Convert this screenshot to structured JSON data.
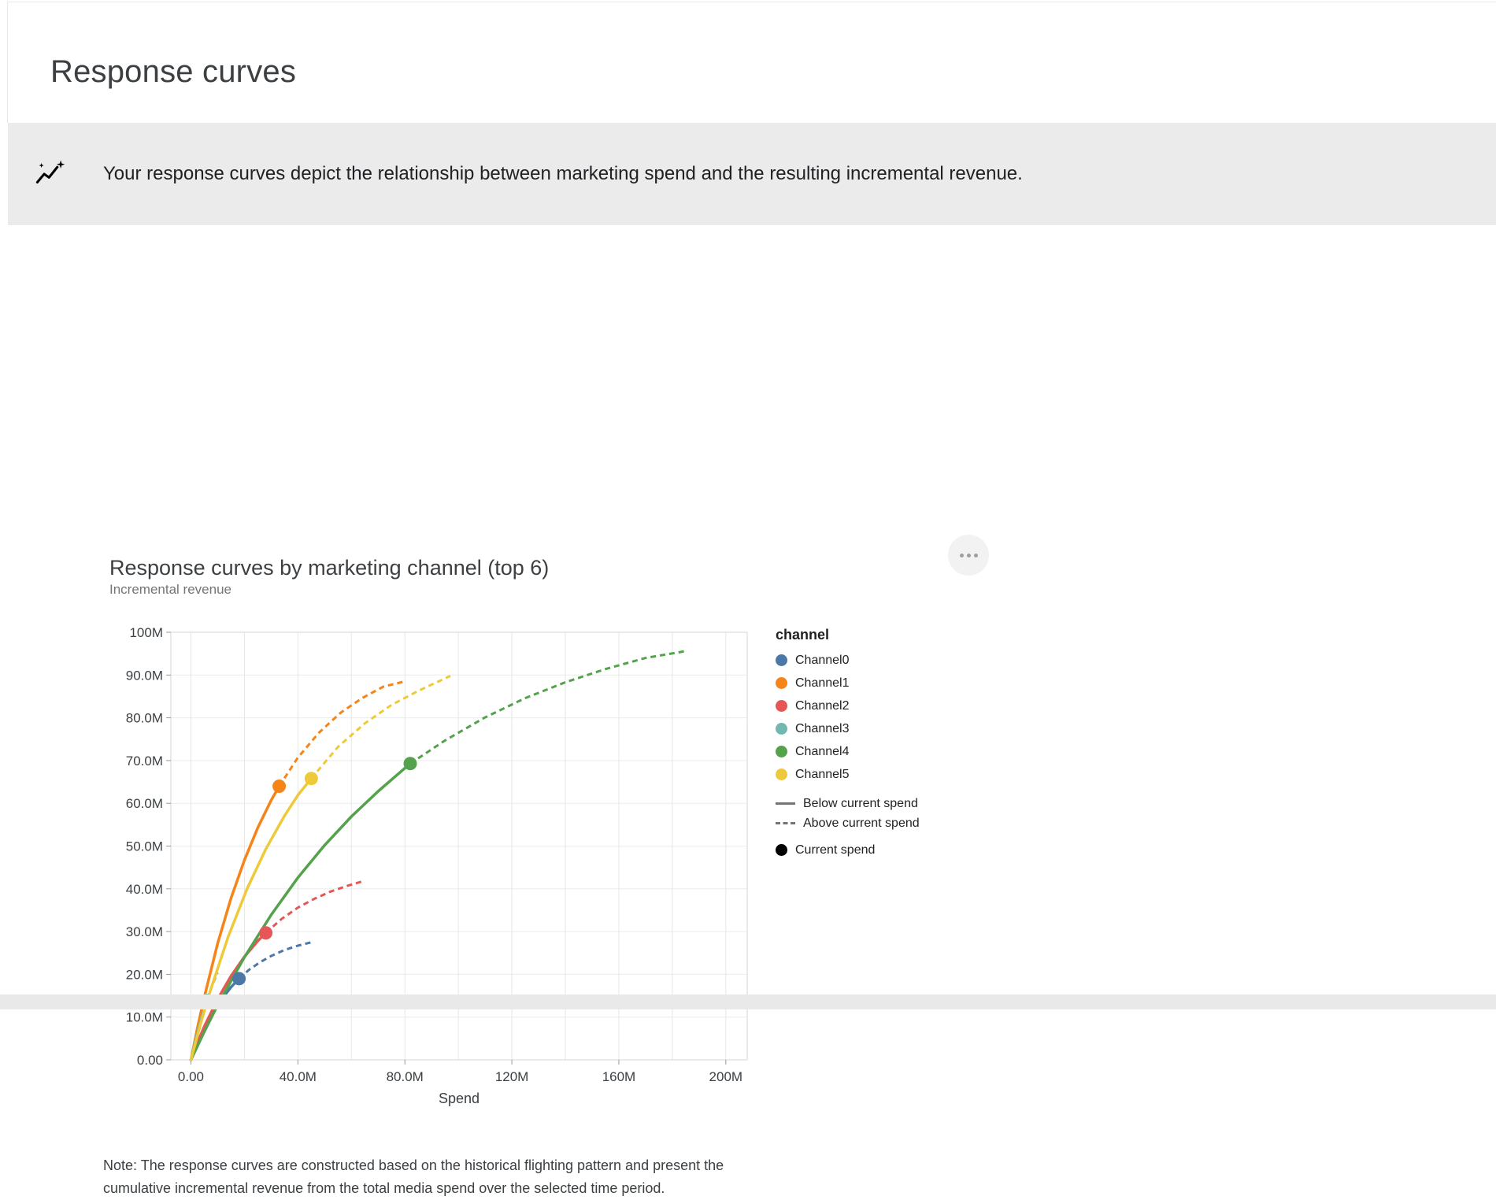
{
  "page": {
    "title": "Response curves",
    "note": "Note: The response curves are constructed based on the historical flighting pattern and present the cumulative incremental revenue from the total media spend over the selected time period."
  },
  "banner": {
    "icon": "insights-icon",
    "text": "Your response curves depict the relationship between marketing spend and the resulting incremental revenue."
  },
  "icons": {
    "chart_menu": "more-options-icon"
  },
  "legend": {
    "title": "channel",
    "style_items": [
      {
        "label": "Below current spend",
        "style": "solid"
      },
      {
        "label": "Above current spend",
        "style": "dashed"
      },
      {
        "label": "Current spend",
        "style": "dot"
      }
    ]
  },
  "chart_data": {
    "type": "line",
    "title": "Response curves by marketing channel (top 6)",
    "xlabel": "Spend",
    "ylabel": "Incremental revenue",
    "units": "M = millions",
    "x_domain_millions": [
      -7.5,
      208
    ],
    "y_domain_millions": [
      0,
      100
    ],
    "x_grid_step": 20,
    "y_grid_step": 10,
    "x_ticks": [
      {
        "v": 0,
        "label": "0.00"
      },
      {
        "v": 40,
        "label": "40.0M"
      },
      {
        "v": 80,
        "label": "80.0M"
      },
      {
        "v": 120,
        "label": "120M"
      },
      {
        "v": 160,
        "label": "160M"
      },
      {
        "v": 200,
        "label": "200M"
      }
    ],
    "y_ticks": [
      {
        "v": 0,
        "label": "0.00"
      },
      {
        "v": 10,
        "label": "10.0M"
      },
      {
        "v": 20,
        "label": "20.0M"
      },
      {
        "v": 30,
        "label": "30.0M"
      },
      {
        "v": 40,
        "label": "40.0M"
      },
      {
        "v": 50,
        "label": "50.0M"
      },
      {
        "v": 60,
        "label": "60.0M"
      },
      {
        "v": 70,
        "label": "70.0M"
      },
      {
        "v": 80,
        "label": "80.0M"
      },
      {
        "v": 90,
        "label": "90.0M"
      },
      {
        "v": 100,
        "label": "100M"
      }
    ],
    "series": [
      {
        "name": "Channel0",
        "color": "#4c78a8",
        "current_spend": {
          "x": 18,
          "y": 19.0
        },
        "below_current": [
          [
            0,
            0
          ],
          [
            1.5,
            2.4
          ],
          [
            3,
            4.6
          ],
          [
            6,
            8.5
          ],
          [
            9,
            11.8
          ],
          [
            12,
            14.6
          ],
          [
            15,
            17.0
          ],
          [
            18,
            19.0
          ]
        ],
        "above_current": [
          [
            18,
            19.0
          ],
          [
            22,
            21.2
          ],
          [
            26,
            22.9
          ],
          [
            30,
            24.3
          ],
          [
            35,
            25.7
          ],
          [
            40,
            26.7
          ],
          [
            45,
            27.5
          ]
        ]
      },
      {
        "name": "Channel1",
        "color": "#f58518",
        "current_spend": {
          "x": 33,
          "y": 64.0
        },
        "below_current": [
          [
            0,
            0
          ],
          [
            2.5,
            7.7
          ],
          [
            5,
            14.7
          ],
          [
            10,
            27.2
          ],
          [
            15,
            37.8
          ],
          [
            20,
            46.7
          ],
          [
            25,
            54.3
          ],
          [
            30,
            60.7
          ],
          [
            33,
            64.0
          ]
        ],
        "above_current": [
          [
            33,
            64.0
          ],
          [
            40,
            70.7
          ],
          [
            48,
            76.6
          ],
          [
            56,
            81.2
          ],
          [
            64,
            84.6
          ],
          [
            72,
            87.3
          ],
          [
            80,
            88.5
          ]
        ]
      },
      {
        "name": "Channel2",
        "color": "#e45756",
        "current_spend": {
          "x": 28,
          "y": 29.7
        },
        "below_current": [
          [
            0,
            0
          ],
          [
            2.5,
            4.1
          ],
          [
            5,
            7.8
          ],
          [
            10,
            14.2
          ],
          [
            15,
            19.6
          ],
          [
            20,
            24.1
          ],
          [
            25,
            27.8
          ],
          [
            28,
            29.7
          ]
        ],
        "above_current": [
          [
            28,
            29.7
          ],
          [
            34,
            33.0
          ],
          [
            40,
            35.6
          ],
          [
            46,
            37.6
          ],
          [
            52,
            39.3
          ],
          [
            58,
            40.6
          ],
          [
            65,
            41.9
          ]
        ]
      },
      {
        "name": "Channel3",
        "color": "#72b7b2",
        "current_spend": {
          "x": 6,
          "y": 13.9
        },
        "below_current": [
          [
            0,
            0
          ],
          [
            2,
            5.3
          ],
          [
            4,
            9.9
          ],
          [
            6,
            13.9
          ]
        ],
        "above_current": [
          [
            6,
            13.9
          ],
          [
            8,
            17.4
          ],
          [
            10,
            20.4
          ]
        ]
      },
      {
        "name": "Channel4",
        "color": "#54a24b",
        "current_spend": {
          "x": 82,
          "y": 69.3
        },
        "below_current": [
          [
            0,
            0
          ],
          [
            5,
            6.6
          ],
          [
            10,
            12.8
          ],
          [
            20,
            24.0
          ],
          [
            30,
            33.9
          ],
          [
            40,
            42.6
          ],
          [
            50,
            50.2
          ],
          [
            60,
            56.9
          ],
          [
            70,
            62.8
          ],
          [
            82,
            69.3
          ]
        ],
        "above_current": [
          [
            82,
            69.3
          ],
          [
            95,
            74.7
          ],
          [
            110,
            80.1
          ],
          [
            125,
            84.6
          ],
          [
            140,
            88.3
          ],
          [
            155,
            91.4
          ],
          [
            170,
            94.0
          ],
          [
            185,
            95.6
          ]
        ]
      },
      {
        "name": "Channel5",
        "color": "#eeca3b",
        "current_spend": {
          "x": 45,
          "y": 65.8
        },
        "below_current": [
          [
            0,
            0
          ],
          [
            3.5,
            8.2
          ],
          [
            7,
            15.7
          ],
          [
            14,
            28.9
          ],
          [
            21,
            40.0
          ],
          [
            28,
            49.3
          ],
          [
            35,
            57.1
          ],
          [
            40,
            61.9
          ],
          [
            45,
            65.8
          ]
        ],
        "above_current": [
          [
            45,
            65.8
          ],
          [
            55,
            73.2
          ],
          [
            65,
            78.7
          ],
          [
            75,
            83.0
          ],
          [
            85,
            86.3
          ],
          [
            97,
            89.8
          ]
        ]
      }
    ]
  }
}
